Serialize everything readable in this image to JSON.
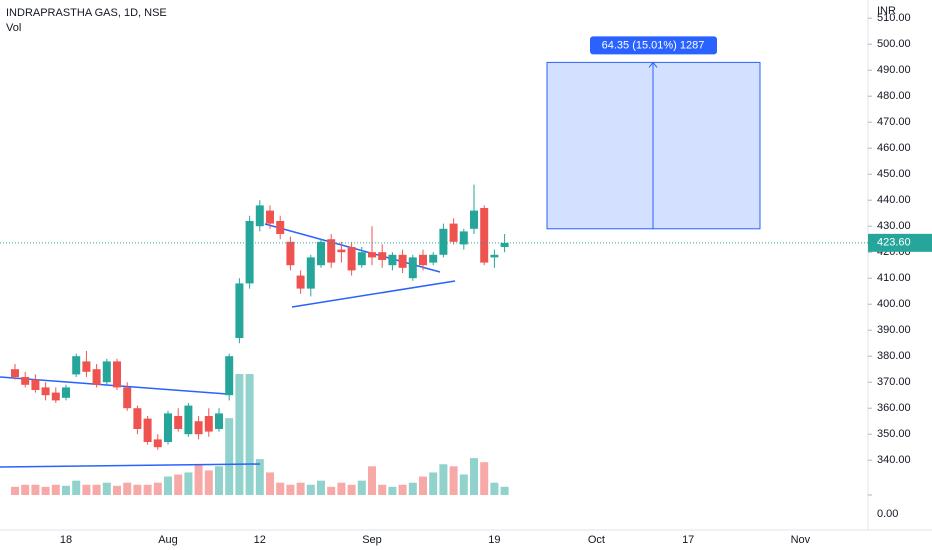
{
  "chart_data": {
    "type": "candlestick",
    "title": "INDRAPRASTHA GAS, 1D, NSE",
    "volume_label": "Vol",
    "currency": "INR",
    "up_color": "#26a69a",
    "down_color": "#ef5350",
    "categories": [
      null,
      null,
      null,
      null,
      null,
      "18",
      null,
      null,
      null,
      null,
      null,
      null,
      null,
      null,
      null,
      "Aug",
      null,
      null,
      null,
      null,
      null,
      null,
      null,
      null,
      "12",
      null,
      null,
      null,
      null,
      null,
      null,
      null,
      null,
      null,
      null,
      "Sep",
      null,
      null,
      null,
      null,
      null,
      null,
      null,
      null,
      null,
      null,
      null,
      "19",
      null,
      null,
      null,
      null,
      null,
      null,
      null,
      null,
      null,
      "Oct",
      null,
      null,
      null,
      null,
      null,
      null,
      null,
      null,
      "17",
      null,
      null,
      null,
      null,
      null,
      null,
      null,
      null,
      null,
      null,
      "Nov",
      null,
      null
    ],
    "open": [
      375,
      372,
      371,
      368,
      366,
      364,
      373,
      378,
      375,
      370,
      378,
      368,
      360,
      356,
      348,
      347,
      357,
      350,
      355,
      357,
      352,
      365,
      387,
      408,
      430,
      436,
      432,
      424,
      411,
      406,
      415,
      425,
      421,
      422,
      415,
      420,
      420,
      415,
      419,
      410,
      419,
      416,
      419,
      431,
      423,
      429,
      437,
      418,
      422,
      null,
      null,
      null,
      null,
      null,
      null,
      null,
      null,
      null,
      null,
      null,
      null,
      null,
      null,
      null,
      null,
      null,
      null,
      null,
      null,
      null,
      null,
      null,
      null,
      null,
      null,
      null,
      null,
      null,
      null,
      null
    ],
    "high": [
      377,
      374,
      373,
      370,
      368,
      369,
      381,
      382,
      377,
      379,
      379,
      370,
      361,
      357,
      350,
      359,
      360,
      362,
      357,
      360,
      360,
      381,
      410,
      434,
      440,
      438,
      434,
      426,
      413,
      419,
      425,
      427,
      424,
      424,
      422,
      430,
      423,
      420,
      421,
      419,
      421,
      420,
      431,
      433,
      429,
      446,
      438,
      421,
      427,
      null,
      null,
      null,
      null,
      null,
      null,
      null,
      null,
      null,
      null,
      null,
      null,
      null,
      null,
      null,
      null,
      null,
      null,
      null,
      null,
      null,
      null,
      null,
      null,
      null,
      null,
      null,
      null,
      null,
      null,
      null
    ],
    "low": [
      371,
      368,
      366,
      363,
      362,
      363,
      372,
      372,
      368,
      369,
      367,
      359,
      350,
      346,
      344,
      346,
      351,
      349,
      348,
      349,
      351,
      363,
      385,
      406,
      428,
      429,
      425,
      413,
      404,
      403,
      414,
      414,
      416,
      411,
      414,
      415,
      414,
      413,
      412,
      409,
      413,
      415,
      418,
      423,
      421,
      427,
      415,
      414,
      420,
      null,
      null,
      null,
      null,
      null,
      null,
      null,
      null,
      null,
      null,
      null,
      null,
      null,
      null,
      null,
      null,
      null,
      null,
      null,
      null,
      null,
      null,
      null,
      null,
      null,
      null,
      null,
      null,
      null,
      null,
      null
    ],
    "close": [
      372,
      369,
      367,
      365,
      363,
      368,
      380,
      374,
      369,
      378,
      368,
      360,
      352,
      347,
      345,
      358,
      352,
      361,
      350,
      351,
      358,
      380,
      408,
      432,
      438,
      431,
      427,
      415,
      406,
      418,
      424,
      416,
      420,
      413,
      420,
      418,
      417,
      419,
      414,
      418,
      415,
      419,
      429,
      424,
      428,
      436,
      416,
      419,
      423.6,
      null,
      null,
      null,
      null,
      null,
      null,
      null,
      null,
      null,
      null,
      null,
      null,
      null,
      null,
      null,
      null,
      null,
      null,
      null,
      null,
      null,
      null,
      null,
      null,
      null,
      null,
      null,
      null,
      null,
      null,
      null
    ],
    "volume": [
      8,
      10,
      10,
      8,
      10,
      9,
      14,
      10,
      10,
      12,
      9,
      12,
      10,
      10,
      12,
      18,
      20,
      22,
      30,
      24,
      28,
      75,
      118,
      118,
      35,
      22,
      12,
      10,
      12,
      10,
      14,
      8,
      12,
      10,
      14,
      28,
      10,
      8,
      10,
      12,
      18,
      22,
      30,
      28,
      20,
      36,
      32,
      12,
      8,
      null,
      null,
      null,
      null,
      null,
      null,
      null,
      null,
      null,
      null,
      null,
      null,
      null,
      null,
      null,
      null,
      null,
      null,
      null,
      null,
      null,
      null,
      null,
      null,
      null,
      null,
      null,
      null,
      null,
      null,
      null
    ],
    "ylim": [
      327,
      517
    ],
    "yticks": [
      {
        "value": 340,
        "label": "340.00"
      },
      {
        "value": 350,
        "label": "350.00"
      },
      {
        "value": 360,
        "label": "360.00"
      },
      {
        "value": 370,
        "label": "370.00"
      },
      {
        "value": 380,
        "label": "380.00"
      },
      {
        "value": 390,
        "label": "390.00"
      },
      {
        "value": 400,
        "label": "400.00"
      },
      {
        "value": 410,
        "label": "410.00"
      },
      {
        "value": 420,
        "label": "420.00"
      },
      {
        "value": 430,
        "label": "430.00"
      },
      {
        "value": 440,
        "label": "440.00"
      },
      {
        "value": 450,
        "label": "450.00"
      },
      {
        "value": 460,
        "label": "460.00"
      },
      {
        "value": 470,
        "label": "470.00"
      },
      {
        "value": 480,
        "label": "480.00"
      },
      {
        "value": 490,
        "label": "490.00"
      },
      {
        "value": 500,
        "label": "500.00"
      },
      {
        "value": 510,
        "label": "510.00"
      }
    ],
    "vol_ylim": [
      0,
      200
    ],
    "vol_yticks": [
      {
        "value": 0,
        "label": "0.00"
      }
    ],
    "last_price": {
      "value": 423.6,
      "label": "423.60"
    },
    "measure": {
      "label": "64.35 (15.01%) 1287",
      "from": 429,
      "to": 493
    },
    "grid": false
  }
}
